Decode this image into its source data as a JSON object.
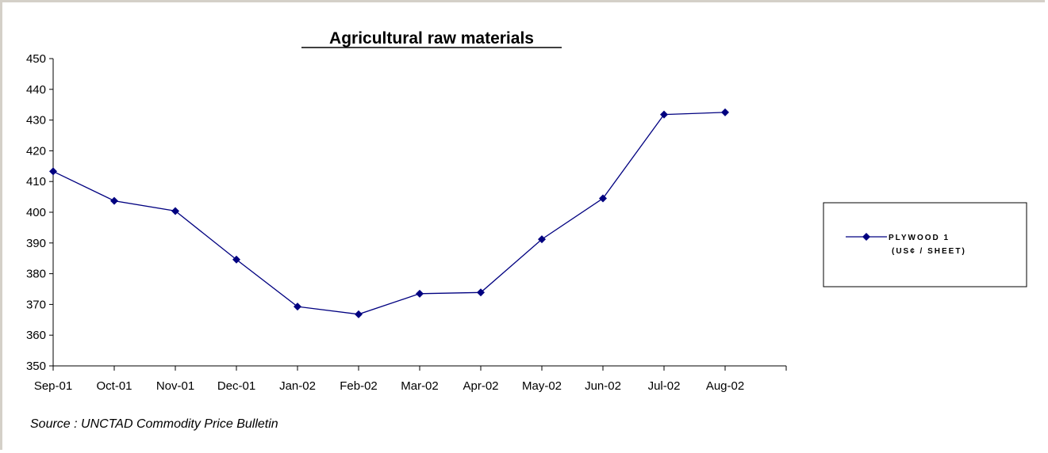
{
  "chart_data": {
    "type": "line",
    "title": "Agricultural raw materials",
    "categories": [
      "Sep-01",
      "Oct-01",
      "Nov-01",
      "Dec-01",
      "Jan-02",
      "Feb-02",
      "Mar-02",
      "Apr-02",
      "May-02",
      "Jun-02",
      "Jul-02",
      "Aug-02"
    ],
    "series": [
      {
        "name": "PLYWOOD 1 (US¢ / SHEET)",
        "name_lines": [
          "PLYWOOD 1",
          "(US¢ / SHEET)"
        ],
        "values": [
          413.3,
          403.7,
          400.4,
          384.6,
          369.3,
          366.8,
          373.5,
          373.9,
          391.2,
          404.5,
          431.8,
          432.5
        ],
        "color": "#000080"
      }
    ],
    "ylim": [
      350,
      450
    ],
    "yticks": [
      350,
      360,
      370,
      380,
      390,
      400,
      410,
      420,
      430,
      440,
      450
    ],
    "xlabel": "",
    "ylabel": "",
    "grid": false,
    "legend_position": "right"
  },
  "source_note": "Source : UNCTAD Commodity Price Bulletin"
}
